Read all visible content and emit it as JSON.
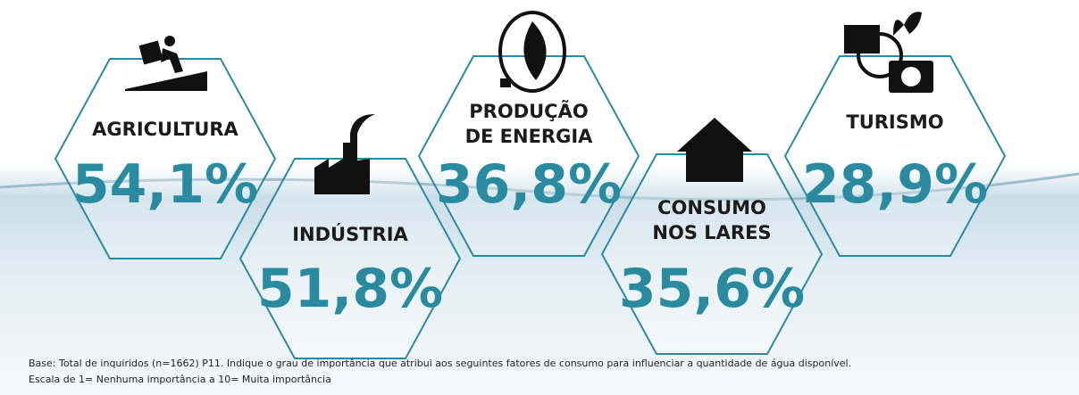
{
  "sectors": [
    {
      "label": [
        "AGRICULTURA"
      ],
      "value": "54,1%"
    },
    {
      "label": [
        "INDÚSTRIA"
      ],
      "value": "51,8%"
    },
    {
      "label": [
        "PRODUÇÃO",
        "DE ENERGIA"
      ],
      "value": "36,8%"
    },
    {
      "label": [
        "CONSUMO",
        "NOS LARES"
      ],
      "value": "35,6%"
    },
    {
      "label": [
        "TURISMO"
      ],
      "value": "28,9%"
    }
  ],
  "footer": {
    "base": "Base: Total de inquiridos (n=1662)   P11. Indique o grau de importância que atribui aos seguintes fatores de consumo para influenciar a quantidade de água disponível.",
    "scale": "Escala de 1= Nenhuma importância a 10= Muita importância"
  }
}
